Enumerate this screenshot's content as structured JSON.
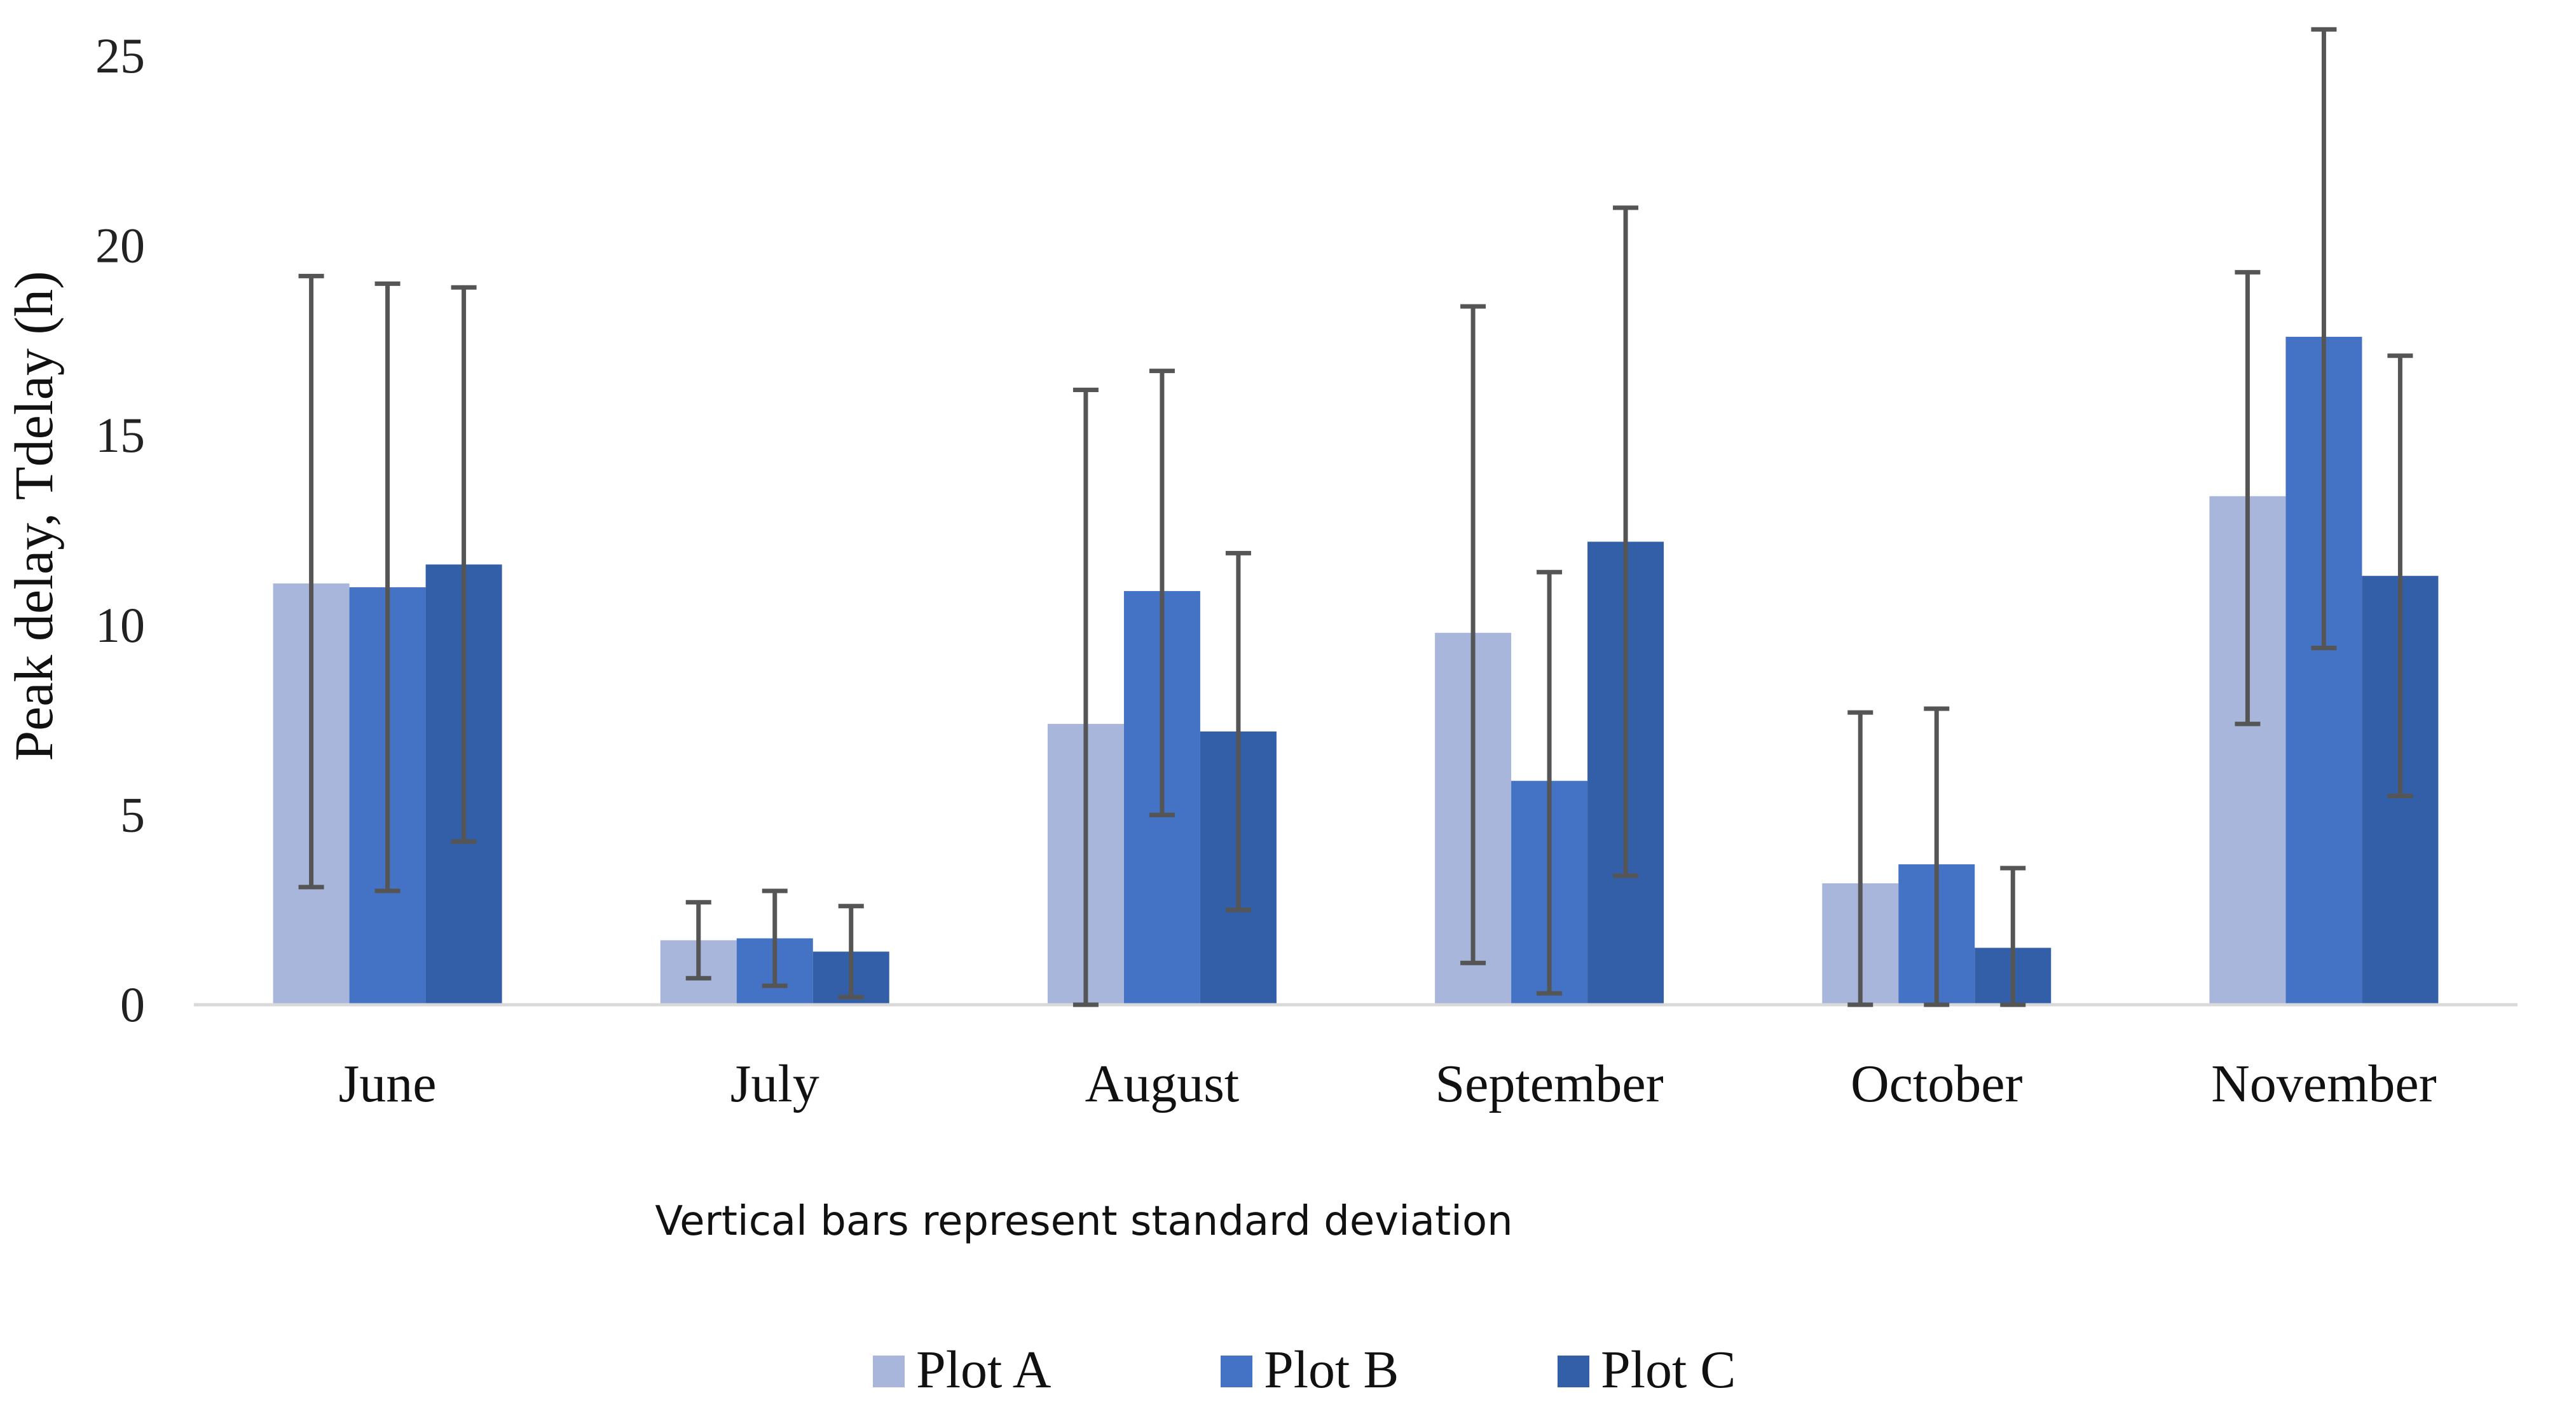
{
  "chart_data": {
    "type": "bar",
    "title": "",
    "xlabel": "",
    "ylabel": "Peak delay, Tdelay (h)",
    "ylim": [
      0,
      25
    ],
    "yticks": [
      0,
      5,
      10,
      15,
      20,
      25
    ],
    "grid": false,
    "note": "Vertical bars represent standard deviation",
    "legend_position": "bottom",
    "categories": [
      "June",
      "July",
      "August",
      "September",
      "October",
      "November"
    ],
    "series": [
      {
        "name": "Plot A",
        "color": "#a9b6db",
        "values": [
          11.1,
          1.7,
          7.4,
          9.8,
          3.2,
          13.4
        ],
        "error_low": [
          3.1,
          0.7,
          0.0,
          1.1,
          0.0,
          7.4
        ],
        "error_high": [
          19.2,
          2.7,
          16.2,
          18.4,
          7.7,
          19.3
        ]
      },
      {
        "name": "Plot B",
        "color": "#4472c4",
        "values": [
          11.0,
          1.75,
          10.9,
          5.9,
          3.7,
          17.6
        ],
        "error_low": [
          3.0,
          0.5,
          5.0,
          0.3,
          0.0,
          9.4
        ],
        "error_high": [
          19.0,
          3.0,
          16.7,
          11.4,
          7.8,
          25.7
        ]
      },
      {
        "name": "Plot C",
        "color": "#335ea8",
        "values": [
          11.6,
          1.4,
          7.2,
          12.2,
          1.5,
          11.3
        ],
        "error_low": [
          4.3,
          0.2,
          2.5,
          3.4,
          0.0,
          5.5
        ],
        "error_high": [
          18.9,
          2.6,
          11.9,
          21.0,
          3.6,
          17.1
        ]
      }
    ]
  }
}
